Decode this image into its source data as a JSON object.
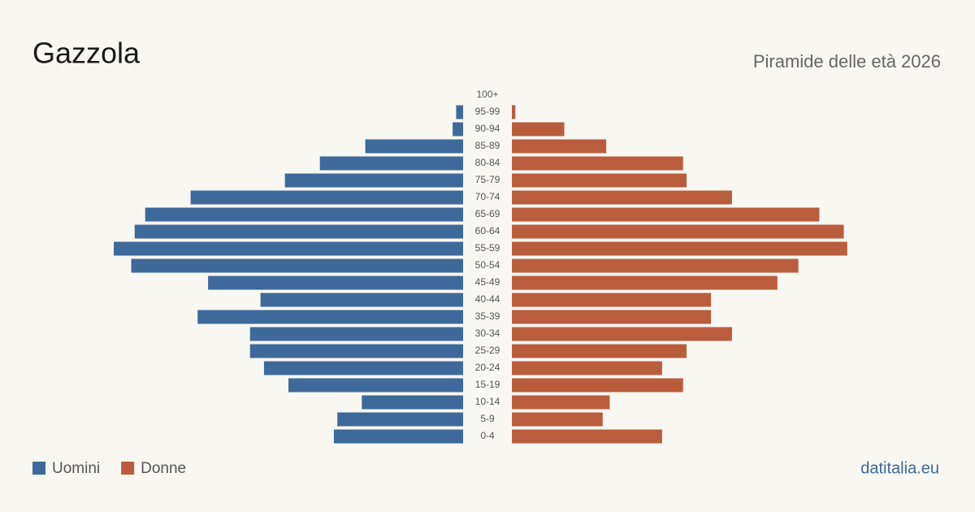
{
  "chart_data": {
    "type": "pyramid",
    "title": "Gazzola",
    "subtitle": "Piramide delle età 2026",
    "source": "datitalia.eu",
    "categories": [
      "100+",
      "95-99",
      "90-94",
      "85-89",
      "80-84",
      "75-79",
      "70-74",
      "65-69",
      "60-64",
      "55-59",
      "50-54",
      "45-49",
      "40-44",
      "35-39",
      "30-34",
      "25-29",
      "20-24",
      "15-19",
      "10-14",
      "5-9",
      "0-4"
    ],
    "series": [
      {
        "name": "Uomini",
        "color": "#3d6a9a",
        "values": [
          0,
          2,
          3,
          28,
          41,
          51,
          78,
          91,
          94,
          100,
          95,
          73,
          58,
          76,
          61,
          61,
          57,
          50,
          29,
          36,
          37
        ]
      },
      {
        "name": "Donne",
        "color": "#b95d3d",
        "values": [
          0,
          1,
          15,
          27,
          49,
          50,
          63,
          88,
          95,
          96,
          82,
          76,
          57,
          57,
          63,
          50,
          43,
          49,
          28,
          26,
          43
        ]
      }
    ]
  }
}
